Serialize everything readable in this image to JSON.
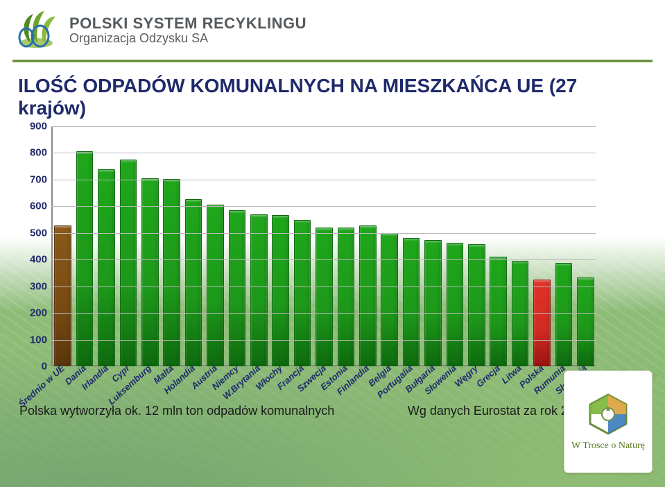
{
  "brand": {
    "top": "POLSKI SYSTEM RECYKLINGU",
    "bottom": "Organizacja Odzysku SA"
  },
  "title": "ILOŚĆ ODPADÓW KOMUNALNYCH NA MIESZKAŃCA UE (27 krajów)",
  "chart": {
    "type": "bar",
    "ylim": [
      0,
      900
    ],
    "ytick_step": 100,
    "yticks": [
      0,
      100,
      200,
      300,
      400,
      500,
      600,
      700,
      800,
      900
    ],
    "grid_color": "#b9b9b9",
    "axis_color": "#888888",
    "background_color": "#ffffff",
    "tick_fontsize": 15,
    "tick_color": "#1f2a6b",
    "xlabel_fontsize": 13,
    "xlabel_color": "#1f2a6b",
    "xlabel_italic": true,
    "xlabel_rotate_deg": -42,
    "bar_width_ratio": 0.72,
    "colors": {
      "default": "#1d981a",
      "default_gradient": [
        "#1fa71b",
        "#1d981a",
        "#0e6a0e"
      ],
      "brown": "#774a12",
      "brown_gradient": [
        "#8a5a1a",
        "#774a12",
        "#5a350c"
      ],
      "red": "#cf2a22",
      "red_gradient": [
        "#e33228",
        "#cf2a22",
        "#9a1410"
      ]
    },
    "categories": [
      "Średnio w UE",
      "Dania",
      "Irlandia",
      "Cypr",
      "Luksemburg",
      "Malta",
      "Holandia",
      "Austria",
      "Niemcy",
      "W.Brytania",
      "Włochy",
      "Francja",
      "Szwecja",
      "Estonia",
      "Finlandia",
      "Belgia",
      "Portugalia",
      "Bułgaria",
      "Słowenia",
      "Węgry",
      "Grecja",
      "Litwa",
      "Polska",
      "Rumunia",
      "Słowacja"
    ],
    "values": [
      524,
      802,
      733,
      770,
      701,
      696,
      622,
      601,
      581,
      565,
      561,
      543,
      515,
      515,
      522,
      493,
      477,
      467,
      459,
      453,
      407,
      390,
      320,
      382,
      328
    ],
    "special": {
      "0": "brown",
      "22": "red"
    }
  },
  "caption": {
    "left": "Polska wytworzyła ok. 12 mln ton odpadów komunalnych",
    "right": "Wg danych Eurostat za rok 2008"
  },
  "badge": {
    "text": "W Trosce o Naturę"
  }
}
